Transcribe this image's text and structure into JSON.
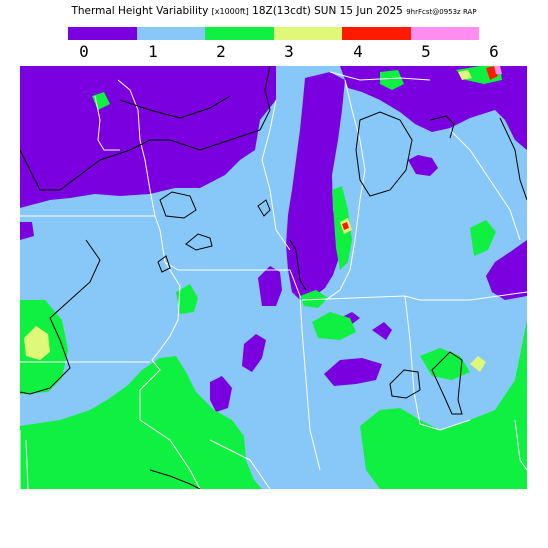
{
  "title": {
    "main": "Thermal Height Variability",
    "units": "[x1000ft]",
    "valid": "18Z(13cdt) SUN 15 Jun 2025",
    "forecast": "9hrFcst@0953z RAP"
  },
  "legend": {
    "colors": [
      "#7a00e0",
      "#87c8f8",
      "#10f040",
      "#e0f878",
      "#ff1a00",
      "#ff8ef0"
    ],
    "ticks": [
      "0",
      "1",
      "2",
      "3",
      "4",
      "5",
      "6"
    ]
  },
  "map": {
    "colors": {
      "purple": "#7a00e0",
      "blue": "#87c8f8",
      "green": "#10f040",
      "yellow": "#e0f878",
      "red": "#ff1a00",
      "pink": "#ff8ef0",
      "boundary": "#ffffff",
      "contour": "#000000"
    }
  }
}
